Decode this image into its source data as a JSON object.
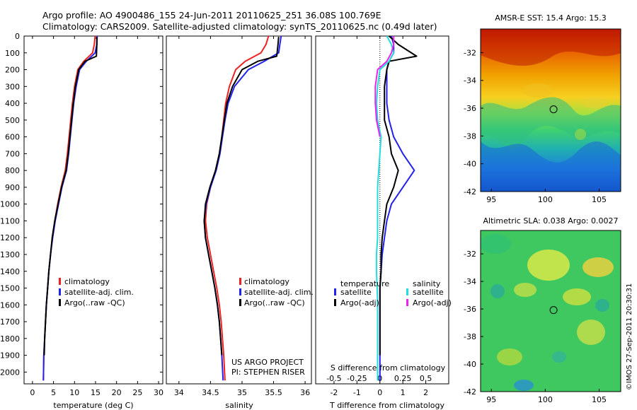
{
  "header": {
    "line1": "Argo profile: AO 4900486_155 24-Jun-2011 20110625_251 36.08S 100.769E",
    "line2": "Climatology: CARS2009. Satellite-adjusted climatology: synTS_20110625.nc (0.49d later)"
  },
  "colors": {
    "climatology": "#ee2222",
    "satellite": "#2222ee",
    "argo": "#000000",
    "s_satellite": "#22dddd",
    "s_argo": "#ee22ee"
  },
  "chart_data": [
    {
      "type": "line",
      "name": "temperature-profile",
      "xlabel": "temperature (deg C)",
      "ylabel": "",
      "xlim": [
        -2,
        31
      ],
      "ylim": [
        2070,
        0
      ],
      "xticks": [
        "0",
        "5",
        "10",
        "15",
        "20",
        "25",
        "30"
      ],
      "yticks": [
        "0",
        "100",
        "200",
        "300",
        "400",
        "500",
        "600",
        "700",
        "800",
        "900",
        "1000",
        "1100",
        "1200",
        "1300",
        "1400",
        "1500",
        "1600",
        "1700",
        "1800",
        "1900",
        "2000"
      ],
      "legend": [
        "climatology",
        "satellite-adj. clim.",
        "Argo(..raw -QC)"
      ],
      "series": [
        {
          "name": "climatology",
          "color": "#ee2222",
          "x": [
            14.9,
            14.7,
            14.3,
            12.2,
            10.8,
            10.0,
            9.5,
            9.1,
            8.7,
            8.3,
            7.8,
            6.8,
            6.0,
            5.3,
            4.7,
            4.3,
            3.9,
            3.6,
            3.3,
            3.1,
            2.9,
            2.7,
            2.6
          ],
          "y": [
            0,
            50,
            100,
            150,
            200,
            300,
            400,
            500,
            600,
            700,
            800,
            900,
            1000,
            1100,
            1200,
            1300,
            1400,
            1500,
            1600,
            1700,
            1800,
            1900,
            2050
          ]
        },
        {
          "name": "satellite-adj. clim.",
          "color": "#2222ee",
          "x": [
            15.4,
            15.3,
            14.9,
            12.8,
            11.2,
            10.4,
            9.8,
            9.4,
            9.0,
            8.6,
            8.1,
            7.0,
            6.2,
            5.4,
            4.8,
            4.3,
            3.9,
            3.6,
            3.3,
            3.1,
            2.9,
            2.7,
            2.6
          ],
          "y": [
            0,
            50,
            100,
            150,
            200,
            300,
            400,
            500,
            600,
            700,
            800,
            900,
            1000,
            1100,
            1200,
            1300,
            1400,
            1500,
            1600,
            1700,
            1800,
            1900,
            2050
          ]
        },
        {
          "name": "Argo(..raw -QC)",
          "color": "#000000",
          "x": [
            15.3,
            15.3,
            15.2,
            12.5,
            11.0,
            10.2,
            9.7,
            9.3,
            8.9,
            8.5,
            8.0,
            6.9,
            6.1,
            5.3,
            4.7,
            4.3,
            3.9,
            3.6,
            3.3,
            3.1,
            2.9,
            2.8
          ],
          "y": [
            5,
            50,
            120,
            150,
            200,
            300,
            400,
            500,
            600,
            700,
            800,
            900,
            1000,
            1100,
            1200,
            1300,
            1400,
            1500,
            1600,
            1700,
            1800,
            1900
          ]
        }
      ]
    },
    {
      "type": "line",
      "name": "salinity-profile",
      "xlabel": "salinity",
      "ylabel": "",
      "xlim": [
        33.8,
        36.1
      ],
      "ylim": [
        2070,
        0
      ],
      "xticks": [
        "34",
        "34.5",
        "35",
        "35.5",
        "36"
      ],
      "legend": [
        "climatology",
        "satellite-adj. clim.",
        "Argo(..raw -QC)"
      ],
      "annotation": [
        "US ARGO PROJECT",
        "PI: STEPHEN RISER"
      ],
      "series": [
        {
          "name": "climatology",
          "color": "#ee2222",
          "x": [
            35.42,
            35.38,
            35.3,
            35.05,
            34.9,
            34.8,
            34.74,
            34.71,
            34.68,
            34.64,
            34.58,
            34.5,
            34.44,
            34.42,
            34.45,
            34.5,
            34.55,
            34.6,
            34.64,
            34.67,
            34.69,
            34.71,
            34.73
          ],
          "y": [
            0,
            50,
            100,
            150,
            200,
            300,
            400,
            500,
            600,
            700,
            800,
            900,
            1000,
            1100,
            1200,
            1300,
            1400,
            1500,
            1600,
            1700,
            1800,
            1900,
            2050
          ]
        },
        {
          "name": "satellite-adj. clim.",
          "color": "#2222ee",
          "x": [
            35.62,
            35.6,
            35.58,
            35.35,
            35.1,
            34.88,
            34.78,
            34.73,
            34.69,
            34.65,
            34.59,
            34.5,
            34.43,
            34.4,
            34.42,
            34.47,
            34.52,
            34.57,
            34.61,
            34.64,
            34.66,
            34.68,
            34.7
          ],
          "y": [
            0,
            50,
            100,
            150,
            200,
            300,
            400,
            500,
            600,
            700,
            800,
            900,
            1000,
            1100,
            1200,
            1300,
            1400,
            1500,
            1600,
            1700,
            1800,
            1900,
            2050
          ]
        },
        {
          "name": "Argo(..raw -QC)",
          "color": "#000000",
          "x": [
            35.58,
            35.57,
            35.55,
            35.25,
            35.0,
            34.85,
            34.76,
            34.72,
            34.68,
            34.64,
            34.58,
            34.49,
            34.42,
            34.4,
            34.42,
            34.47,
            34.52,
            34.57,
            34.61,
            34.64,
            34.66,
            34.68
          ],
          "y": [
            5,
            50,
            120,
            150,
            200,
            300,
            400,
            500,
            600,
            700,
            800,
            900,
            1000,
            1100,
            1200,
            1300,
            1400,
            1500,
            1600,
            1700,
            1800,
            1900
          ]
        }
      ]
    },
    {
      "type": "line",
      "name": "difference-profile",
      "xlabel": "T difference from climatology",
      "xlabel2": "S difference from climatology",
      "xlim": [
        -2.8,
        3.0
      ],
      "ylim": [
        2070,
        0
      ],
      "xticks": [
        "-2",
        "-1",
        "0",
        "1",
        "2"
      ],
      "xticks2": [
        "-0.5",
        "-0.25",
        "0",
        "0.25",
        "0.5"
      ],
      "legend_groups": [
        {
          "title": "temperature",
          "entries": [
            "satellite",
            "Argo(-adj)"
          ]
        },
        {
          "title": "salinity",
          "entries": [
            "satellite",
            "Argo(-adj)"
          ]
        }
      ],
      "series": [
        {
          "name": "temperature satellite",
          "color": "#2222ee",
          "x": [
            0.5,
            0.6,
            0.6,
            0.4,
            0.3,
            0.3,
            0.3,
            0.4,
            0.6,
            1.0,
            1.5,
            1.0,
            0.5,
            0.3,
            0.2,
            0.1,
            0.05,
            0.0,
            0.0,
            0.0,
            0.0
          ],
          "y": [
            0,
            50,
            100,
            150,
            200,
            300,
            400,
            500,
            600,
            700,
            800,
            900,
            1000,
            1100,
            1200,
            1300,
            1400,
            1500,
            1600,
            1800,
            2050
          ]
        },
        {
          "name": "temperature Argo(-adj)",
          "color": "#000000",
          "x": [
            0.4,
            0.8,
            1.6,
            0.4,
            0.3,
            0.2,
            0.2,
            0.2,
            0.4,
            0.5,
            0.8,
            0.6,
            0.3,
            0.2,
            0.1,
            0.05,
            0.05,
            0.0,
            0.0,
            0.0,
            0.0
          ],
          "y": [
            0,
            50,
            120,
            150,
            200,
            300,
            400,
            500,
            600,
            700,
            800,
            900,
            1000,
            1100,
            1200,
            1300,
            1400,
            1500,
            1600,
            1800,
            1900
          ]
        },
        {
          "name": "salinity satellite",
          "color": "#22dddd",
          "x": [
            0.3,
            0.5,
            0.6,
            0.4,
            0.0,
            -0.1,
            -0.15,
            -0.1,
            0.05,
            0.0,
            -0.05,
            -0.1,
            -0.1,
            -0.1,
            -0.1,
            -0.15,
            -0.15,
            -0.12,
            -0.1,
            -0.1,
            -0.1
          ],
          "y": [
            0,
            50,
            100,
            150,
            200,
            300,
            400,
            500,
            600,
            700,
            800,
            900,
            1000,
            1100,
            1200,
            1300,
            1400,
            1500,
            1600,
            1800,
            2050
          ]
        },
        {
          "name": "salinity Argo(-adj)",
          "color": "#ee22ee",
          "x": [
            0.6,
            0.6,
            0.5,
            0.3,
            -0.1,
            -0.2,
            -0.2,
            -0.15,
            0.0
          ],
          "y": [
            0,
            50,
            100,
            150,
            200,
            300,
            400,
            500,
            600
          ]
        }
      ]
    },
    {
      "type": "heatmap",
      "name": "sst-map",
      "title": "AMSR-E SST: 15.4 Argo: 15.3",
      "xticks": [
        "95",
        "100",
        "105"
      ],
      "yticks": [
        "-32",
        "-34",
        "-36",
        "-38",
        "-40",
        "-42"
      ],
      "xlim": [
        94,
        107
      ],
      "ylim": [
        -42,
        -30.3
      ],
      "marker": {
        "lon": 100.769,
        "lat": -36.08
      }
    },
    {
      "type": "heatmap",
      "name": "sla-map",
      "title": "Altimetric SLA: 0.038 Argo: 0.0027",
      "xticks": [
        "95",
        "100",
        "105"
      ],
      "yticks": [
        "-32",
        "-34",
        "-36",
        "-38",
        "-40",
        "-42"
      ],
      "xlim": [
        94,
        107
      ],
      "ylim": [
        -42,
        -30.3
      ],
      "marker": {
        "lon": 100.769,
        "lat": -36.08
      }
    }
  ],
  "footer": {
    "credit": "©IMOS 27-Sep-2011 20:30:31"
  }
}
